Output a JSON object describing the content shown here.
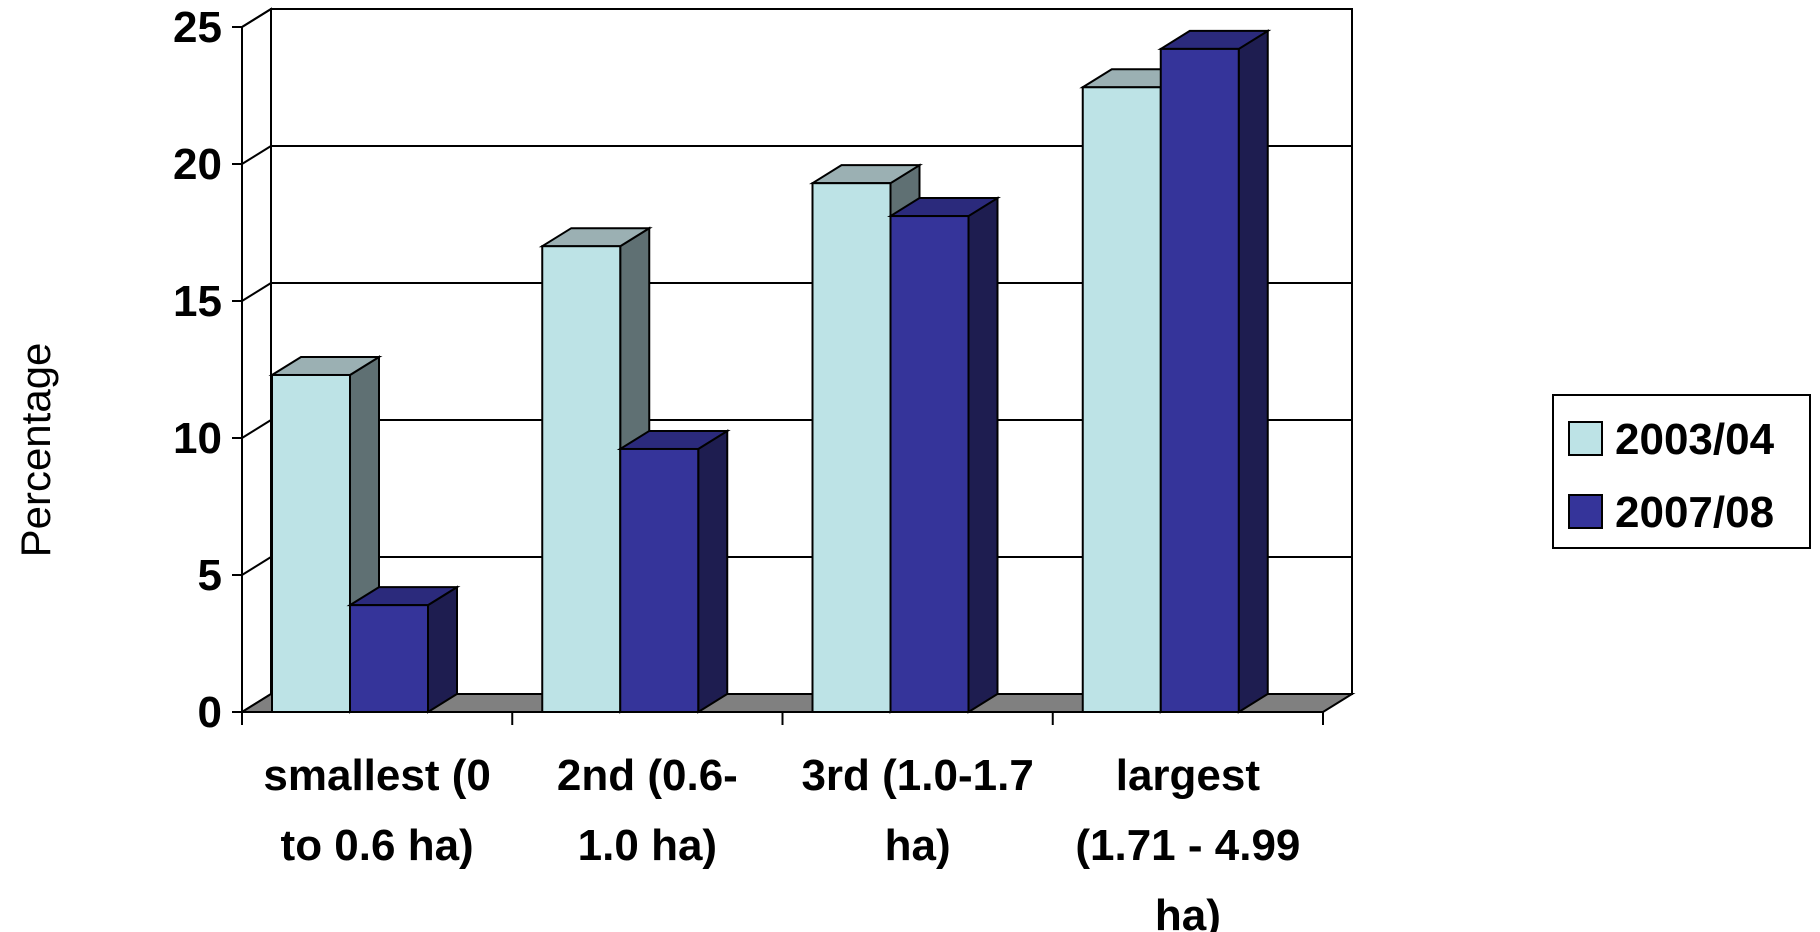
{
  "chart_data": {
    "type": "bar",
    "title": "",
    "xlabel": "",
    "ylabel": "Percentage",
    "ylim": [
      0,
      25
    ],
    "yticks": [
      "0",
      "5",
      "10",
      "15",
      "20",
      "25"
    ],
    "grid": true,
    "legend_position": "right",
    "categories": [
      [
        "smallest (0",
        "to 0.6 ha)"
      ],
      [
        "2nd (0.6-",
        "1.0 ha)"
      ],
      [
        "3rd (1.0-1.7",
        "ha)"
      ],
      [
        "largest",
        "(1.71 - 4.99",
        "ha)"
      ]
    ],
    "series": [
      {
        "name": "2003/04",
        "values": [
          12.3,
          17.0,
          19.3,
          22.8
        ],
        "color": "#bde3e6",
        "side_color": "#5f7073",
        "top_color": "#9bb0b3"
      },
      {
        "name": "2007/08",
        "values": [
          3.9,
          9.6,
          18.1,
          24.2
        ],
        "color": "#35349a",
        "side_color": "#1e1d50",
        "top_color": "#2b2a7c"
      }
    ],
    "colors": {
      "floor": "#808080",
      "grid": "#000000"
    }
  }
}
